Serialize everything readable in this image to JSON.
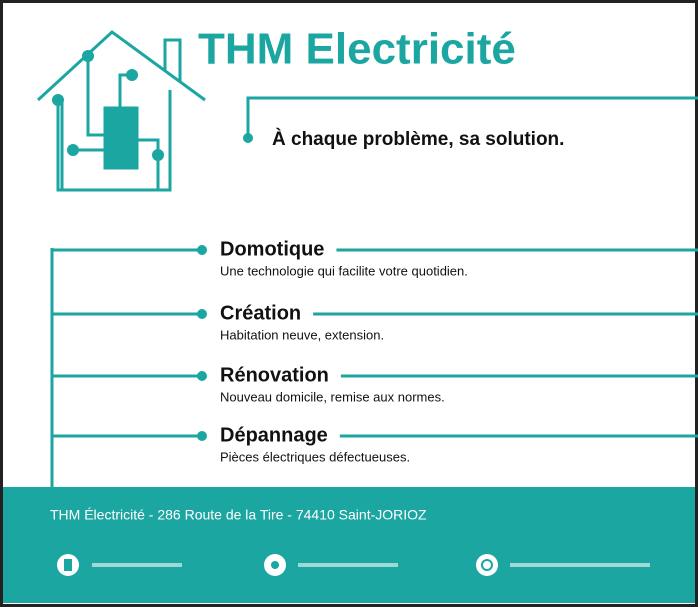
{
  "header": {
    "title": "THM Electricité",
    "tagline": "À chaque problème, sa solution."
  },
  "services": [
    {
      "name": "Domotique",
      "description": "Une technologie qui facilite votre quotidien."
    },
    {
      "name": "Création",
      "description": "Habitation neuve, extension."
    },
    {
      "name": "Rénovation",
      "description": "Nouveau domicile, remise aux normes."
    },
    {
      "name": "Dépannage",
      "description": "Pièces électriques défectueuses."
    }
  ],
  "footer": {
    "address": "THM Électricité - 286 Route de la Tire - 74410 Saint-JORIOZ"
  }
}
